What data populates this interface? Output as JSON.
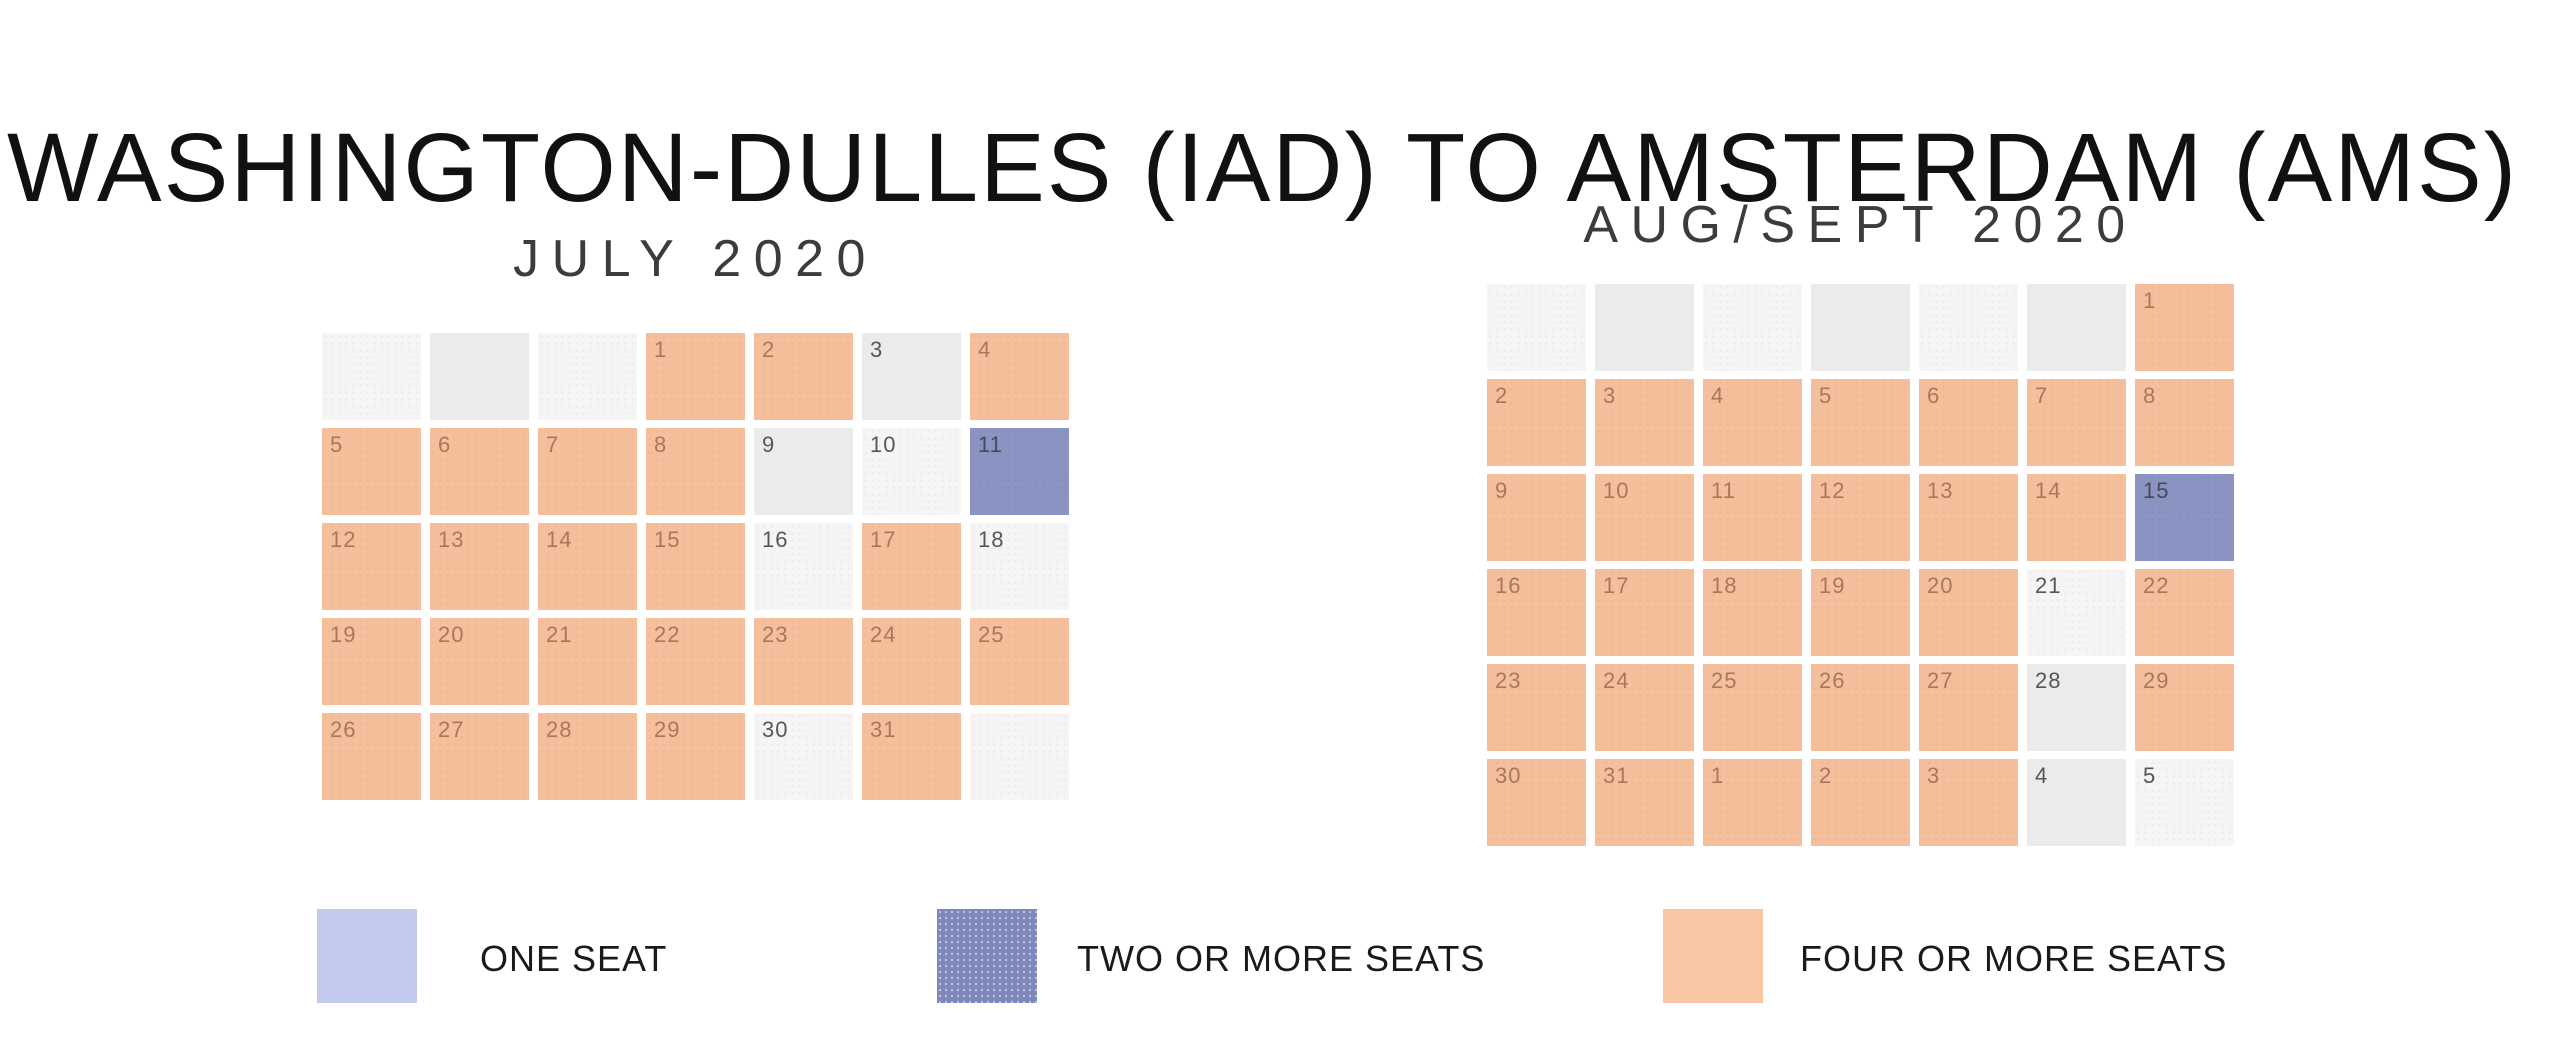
{
  "title": "WASHINGTON-DULLES (IAD) TO AMSTERDAM (AMS)",
  "colors": {
    "four_or_more_cell": "#f6bf9b",
    "two_or_more_cell": "#8a93c2",
    "unavailable_light": "#f5f5f5",
    "unavailable_dark": "#ebebeb",
    "legend_one_seat": "#c2cbed",
    "legend_two_or_more": "#7e88bb",
    "legend_four_or_more": "#f8c8a4"
  },
  "legend": {
    "items": [
      {
        "id": "one",
        "label": "ONE SEAT"
      },
      {
        "id": "two",
        "label": "TWO OR MORE SEATS"
      },
      {
        "id": "four",
        "label": "FOUR OR MORE SEATS"
      }
    ]
  },
  "chart_data": {
    "type": "heatmap",
    "title": "WASHINGTON-DULLES (IAD) TO AMSTERDAM (AMS)",
    "legend_entries": [
      "ONE SEAT",
      "TWO OR MORE SEATS",
      "FOUR OR MORE SEATS"
    ],
    "calendars": [
      {
        "id": "july",
        "title": "JULY 2020",
        "rows": [
          [
            {
              "day": "",
              "avail": "none-light"
            },
            {
              "day": "",
              "avail": "none-dark"
            },
            {
              "day": "",
              "avail": "none-light"
            },
            {
              "day": "1",
              "avail": "four"
            },
            {
              "day": "2",
              "avail": "four"
            },
            {
              "day": "3",
              "avail": "none-dark"
            },
            {
              "day": "4",
              "avail": "four"
            }
          ],
          [
            {
              "day": "5",
              "avail": "four"
            },
            {
              "day": "6",
              "avail": "four"
            },
            {
              "day": "7",
              "avail": "four"
            },
            {
              "day": "8",
              "avail": "four"
            },
            {
              "day": "9",
              "avail": "none-dark"
            },
            {
              "day": "10",
              "avail": "none-light"
            },
            {
              "day": "11",
              "avail": "two"
            }
          ],
          [
            {
              "day": "12",
              "avail": "four"
            },
            {
              "day": "13",
              "avail": "four"
            },
            {
              "day": "14",
              "avail": "four"
            },
            {
              "day": "15",
              "avail": "four"
            },
            {
              "day": "16",
              "avail": "none-light"
            },
            {
              "day": "17",
              "avail": "four"
            },
            {
              "day": "18",
              "avail": "none-light"
            }
          ],
          [
            {
              "day": "19",
              "avail": "four"
            },
            {
              "day": "20",
              "avail": "four"
            },
            {
              "day": "21",
              "avail": "four"
            },
            {
              "day": "22",
              "avail": "four"
            },
            {
              "day": "23",
              "avail": "four"
            },
            {
              "day": "24",
              "avail": "four"
            },
            {
              "day": "25",
              "avail": "four"
            }
          ],
          [
            {
              "day": "26",
              "avail": "four"
            },
            {
              "day": "27",
              "avail": "four"
            },
            {
              "day": "28",
              "avail": "four"
            },
            {
              "day": "29",
              "avail": "four"
            },
            {
              "day": "30",
              "avail": "none-light"
            },
            {
              "day": "31",
              "avail": "four"
            },
            {
              "day": "",
              "avail": "none-light"
            }
          ]
        ]
      },
      {
        "id": "augsept",
        "title": "AUG/SEPT 2020",
        "rows": [
          [
            {
              "day": "",
              "avail": "none-light"
            },
            {
              "day": "",
              "avail": "none-dark"
            },
            {
              "day": "",
              "avail": "none-light"
            },
            {
              "day": "",
              "avail": "none-dark"
            },
            {
              "day": "",
              "avail": "none-light"
            },
            {
              "day": "",
              "avail": "none-dark"
            },
            {
              "day": "1",
              "avail": "four"
            }
          ],
          [
            {
              "day": "2",
              "avail": "four"
            },
            {
              "day": "3",
              "avail": "four"
            },
            {
              "day": "4",
              "avail": "four"
            },
            {
              "day": "5",
              "avail": "four"
            },
            {
              "day": "6",
              "avail": "four"
            },
            {
              "day": "7",
              "avail": "four"
            },
            {
              "day": "8",
              "avail": "four"
            }
          ],
          [
            {
              "day": "9",
              "avail": "four"
            },
            {
              "day": "10",
              "avail": "four"
            },
            {
              "day": "11",
              "avail": "four"
            },
            {
              "day": "12",
              "avail": "four"
            },
            {
              "day": "13",
              "avail": "four"
            },
            {
              "day": "14",
              "avail": "four"
            },
            {
              "day": "15",
              "avail": "two"
            }
          ],
          [
            {
              "day": "16",
              "avail": "four"
            },
            {
              "day": "17",
              "avail": "four"
            },
            {
              "day": "18",
              "avail": "four"
            },
            {
              "day": "19",
              "avail": "four"
            },
            {
              "day": "20",
              "avail": "four"
            },
            {
              "day": "21",
              "avail": "none-light"
            },
            {
              "day": "22",
              "avail": "four"
            }
          ],
          [
            {
              "day": "23",
              "avail": "four"
            },
            {
              "day": "24",
              "avail": "four"
            },
            {
              "day": "25",
              "avail": "four"
            },
            {
              "day": "26",
              "avail": "four"
            },
            {
              "day": "27",
              "avail": "four"
            },
            {
              "day": "28",
              "avail": "none-dark"
            },
            {
              "day": "29",
              "avail": "four"
            }
          ],
          [
            {
              "day": "30",
              "avail": "four"
            },
            {
              "day": "31",
              "avail": "four"
            },
            {
              "day": "1",
              "avail": "four"
            },
            {
              "day": "2",
              "avail": "four"
            },
            {
              "day": "3",
              "avail": "four"
            },
            {
              "day": "4",
              "avail": "none-dark"
            },
            {
              "day": "5",
              "avail": "none-light"
            }
          ]
        ]
      }
    ]
  }
}
